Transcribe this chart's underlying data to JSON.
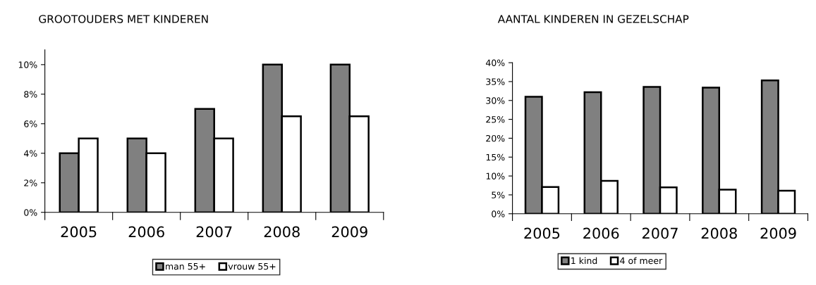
{
  "chart_data": [
    {
      "type": "bar",
      "title": "GROOTOUDERS MET KINDEREN",
      "categories": [
        "2005",
        "2006",
        "2007",
        "2008",
        "2009"
      ],
      "series": [
        {
          "name": "man 55+",
          "color": "#808080",
          "values": [
            4,
            5,
            7,
            10,
            10
          ]
        },
        {
          "name": "vrouw 55+",
          "color": "#ffffff",
          "values": [
            5,
            4,
            5,
            6.5,
            6.5
          ]
        }
      ],
      "ylim": [
        0,
        11
      ],
      "yticks": [
        {
          "value": 0,
          "label": "0%"
        },
        {
          "value": 2,
          "label": "2%"
        },
        {
          "value": 4,
          "label": "4%"
        },
        {
          "value": 6,
          "label": "6%"
        },
        {
          "value": 8,
          "label": "8%"
        },
        {
          "value": 10,
          "label": "10%"
        }
      ],
      "grid": false,
      "legend": "bottom"
    },
    {
      "type": "bar",
      "title": "AANTAL KINDEREN IN GEZELSCHAP",
      "categories": [
        "2005",
        "2006",
        "2007",
        "2008",
        "2009"
      ],
      "series": [
        {
          "name": "1 kind",
          "color": "#808080",
          "values": [
            31.0,
            32.2,
            33.6,
            33.4,
            35.3
          ]
        },
        {
          "name": "4 of meer",
          "color": "#ffffff",
          "values": [
            7.1,
            8.7,
            7.0,
            6.4,
            6.1
          ]
        }
      ],
      "ylim": [
        0,
        40
      ],
      "yticks": [
        {
          "value": 0,
          "label": "0%"
        },
        {
          "value": 5,
          "label": "5%"
        },
        {
          "value": 10,
          "label": "10%"
        },
        {
          "value": 15,
          "label": "15%"
        },
        {
          "value": 20,
          "label": "20%"
        },
        {
          "value": 25,
          "label": "25%"
        },
        {
          "value": 30,
          "label": "30%"
        },
        {
          "value": 35,
          "label": "35%"
        },
        {
          "value": 40,
          "label": "40%"
        }
      ],
      "grid": false,
      "legend": "bottom"
    }
  ]
}
